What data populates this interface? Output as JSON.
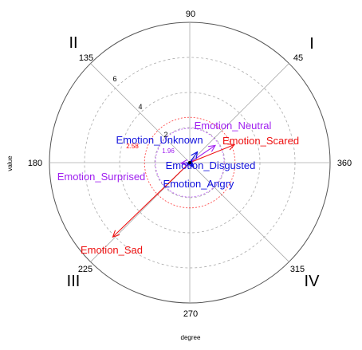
{
  "chart_data": {
    "type": "polar-vector",
    "xlabel": "degree",
    "ylabel": "value",
    "angle_ticks": [
      "90",
      "45",
      "135",
      "180",
      "360",
      "225",
      "315",
      "270"
    ],
    "radial_ticks": [
      "2",
      "4",
      "6"
    ],
    "quadrants": [
      "I",
      "II",
      "III",
      "IV"
    ],
    "reference_circles": [
      {
        "label": "2.58",
        "radius": 2.58,
        "color": "#ff0000"
      },
      {
        "label": "1.96",
        "radius": 1.96,
        "color": "#a020f0"
      }
    ],
    "radial_max": 8,
    "series": [
      {
        "name": "Emotion_Sad",
        "angle_deg": 224,
        "magnitude": 6.1,
        "color": "#ee1111"
      },
      {
        "name": "Emotion_Scared",
        "angle_deg": 22,
        "magnitude": 2.75,
        "color": "#ee1111"
      },
      {
        "name": "Emotion_Neutral",
        "angle_deg": 34,
        "magnitude": 1.75,
        "color": "#a020f0"
      },
      {
        "name": "Emotion_Surprised",
        "angle_deg": 184,
        "magnitude": 0.5,
        "color": "#a020f0"
      },
      {
        "name": "Emotion_Unknown",
        "angle_deg": 55,
        "magnitude": 0.75,
        "color": "#1111dd"
      },
      {
        "name": "Emotion_Disgusted",
        "angle_deg": 315,
        "magnitude": 0.3,
        "color": "#1111dd"
      },
      {
        "name": "Emotion_Angry",
        "angle_deg": 300,
        "magnitude": 0.25,
        "color": "#1111dd"
      }
    ]
  }
}
